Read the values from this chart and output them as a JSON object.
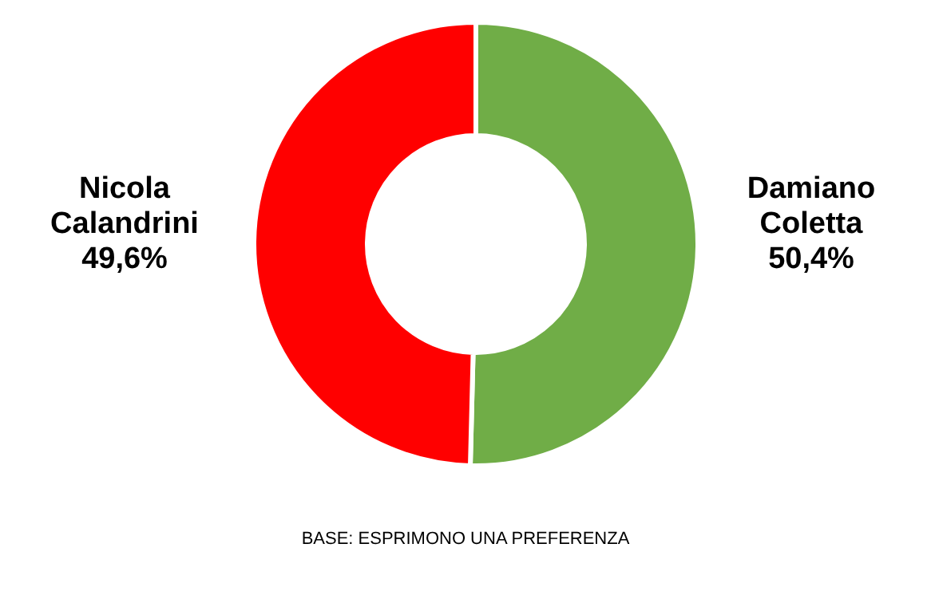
{
  "chart_data": {
    "type": "donut",
    "categories": [
      "Damiano Coletta",
      "Nicola Calandrini"
    ],
    "values": [
      50.4,
      49.6
    ],
    "colors": [
      "#70ad47",
      "#ff0000"
    ],
    "value_labels": [
      "50,4%",
      "49,6%"
    ],
    "annotations": [
      "BASE: ESPRIMONO UNA PREFERENZA"
    ]
  }
}
